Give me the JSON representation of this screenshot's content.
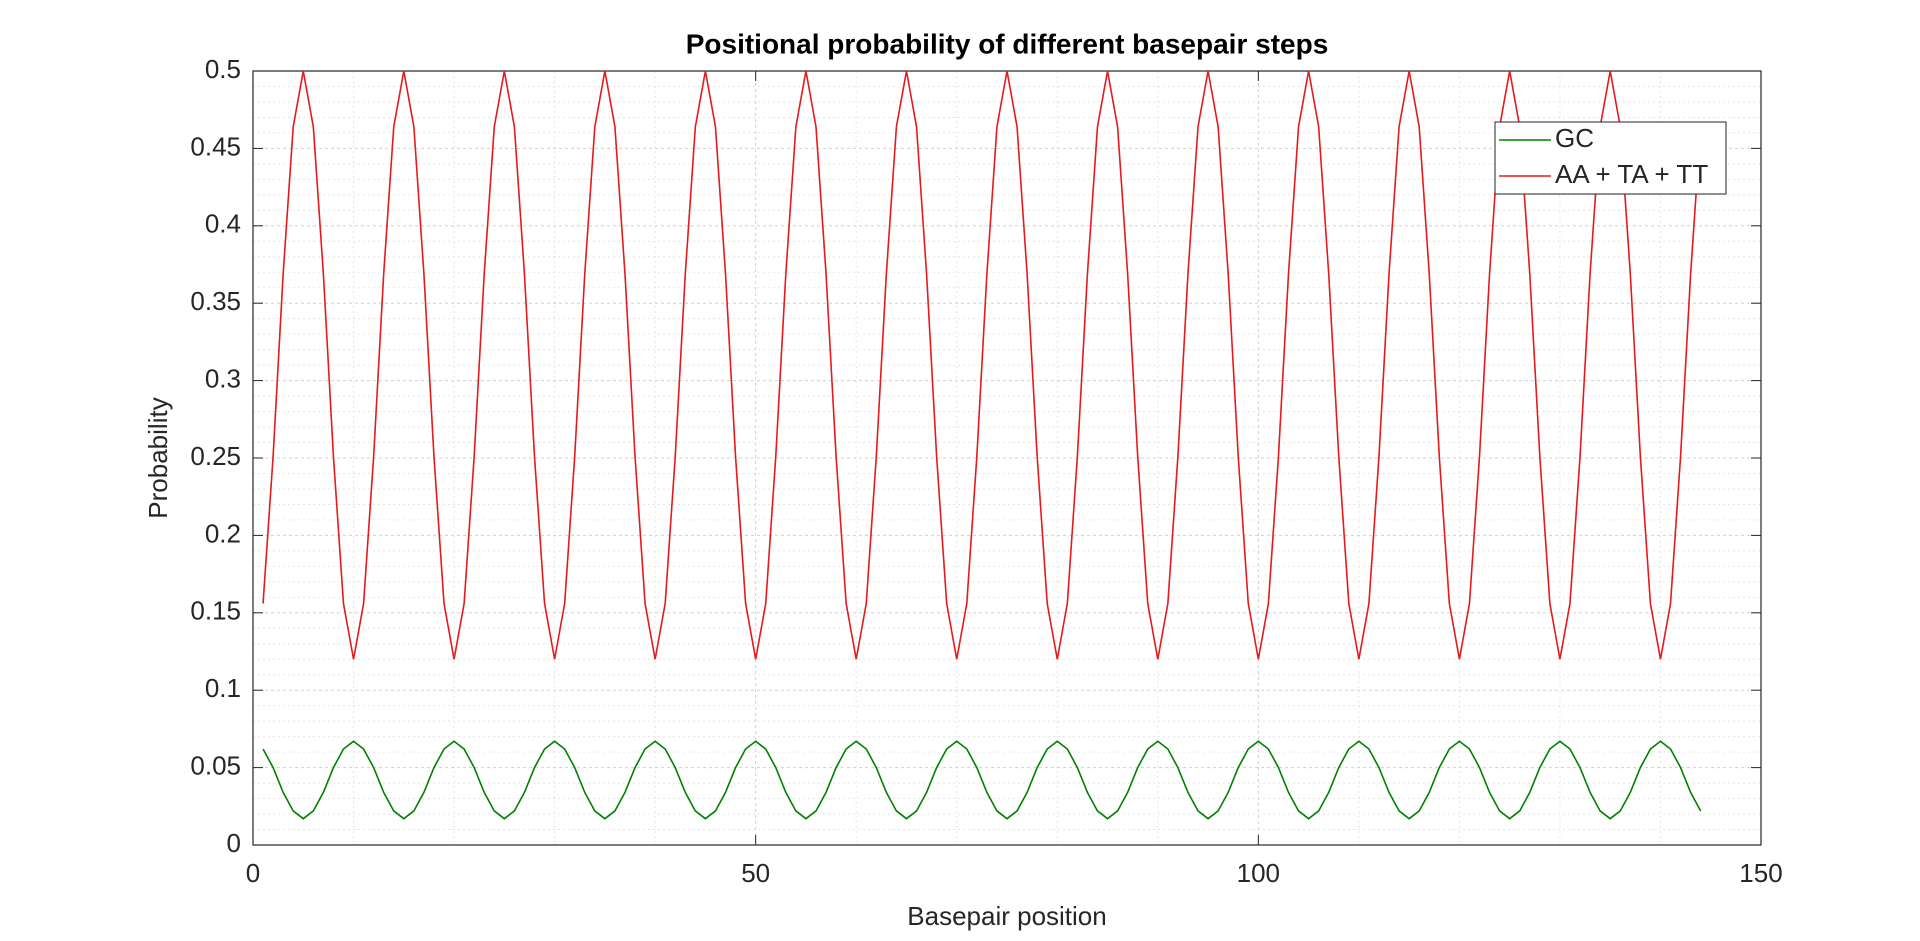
{
  "chart_data": {
    "type": "line",
    "title": "Positional probability of different basepair steps",
    "xlabel": "Basepair position",
    "ylabel": "Probability",
    "xlim": [
      0,
      150
    ],
    "xticks": [
      0,
      50,
      100,
      150
    ],
    "ylim": [
      0,
      0.5
    ],
    "yticks": [
      0,
      0.05,
      0.1,
      0.15,
      0.2,
      0.25,
      0.3,
      0.35,
      0.4,
      0.45,
      0.5
    ],
    "grid": true,
    "minor_grid": true,
    "legend": "northeast",
    "x": [
      1,
      2,
      3,
      4,
      5,
      6,
      7,
      8,
      9,
      10,
      11,
      12,
      13,
      14,
      15,
      16,
      17,
      18,
      19,
      20,
      21,
      22,
      23,
      24,
      25,
      26,
      27,
      28,
      29,
      30,
      31,
      32,
      33,
      34,
      35,
      36,
      37,
      38,
      39,
      40,
      41,
      42,
      43,
      44,
      45,
      46,
      47,
      48,
      49,
      50,
      51,
      52,
      53,
      54,
      55,
      56,
      57,
      58,
      59,
      60,
      61,
      62,
      63,
      64,
      65,
      66,
      67,
      68,
      69,
      70,
      71,
      72,
      73,
      74,
      75,
      76,
      77,
      78,
      79,
      80,
      81,
      82,
      83,
      84,
      85,
      86,
      87,
      88,
      89,
      90,
      91,
      92,
      93,
      94,
      95,
      96,
      97,
      98,
      99,
      100,
      101,
      102,
      103,
      104,
      105,
      106,
      107,
      108,
      109,
      110,
      111,
      112,
      113,
      114,
      115,
      116,
      117,
      118,
      119,
      120,
      121,
      122,
      123,
      124,
      125,
      126,
      127,
      128,
      129,
      130,
      131,
      132,
      133,
      134,
      135,
      136,
      137,
      138,
      139,
      140,
      141,
      142,
      143,
      144
    ],
    "series": [
      {
        "name": "GC",
        "color": "#008000",
        "values": [
          0.062,
          0.05,
          0.034,
          0.022,
          0.017,
          0.022,
          0.034,
          0.05,
          0.062,
          0.067,
          0.062,
          0.05,
          0.034,
          0.022,
          0.017,
          0.022,
          0.034,
          0.05,
          0.062,
          0.067,
          0.062,
          0.05,
          0.034,
          0.022,
          0.017,
          0.022,
          0.034,
          0.05,
          0.062,
          0.067,
          0.062,
          0.05,
          0.034,
          0.022,
          0.017,
          0.022,
          0.034,
          0.05,
          0.062,
          0.067,
          0.062,
          0.05,
          0.034,
          0.022,
          0.017,
          0.022,
          0.034,
          0.05,
          0.062,
          0.067,
          0.062,
          0.05,
          0.034,
          0.022,
          0.017,
          0.022,
          0.034,
          0.05,
          0.062,
          0.067,
          0.062,
          0.05,
          0.034,
          0.022,
          0.017,
          0.022,
          0.034,
          0.05,
          0.062,
          0.067,
          0.062,
          0.05,
          0.034,
          0.022,
          0.017,
          0.022,
          0.034,
          0.05,
          0.062,
          0.067,
          0.062,
          0.05,
          0.034,
          0.022,
          0.017,
          0.022,
          0.034,
          0.05,
          0.062,
          0.067,
          0.062,
          0.05,
          0.034,
          0.022,
          0.017,
          0.022,
          0.034,
          0.05,
          0.062,
          0.067,
          0.062,
          0.05,
          0.034,
          0.022,
          0.017,
          0.022,
          0.034,
          0.05,
          0.062,
          0.067,
          0.062,
          0.05,
          0.034,
          0.022,
          0.017,
          0.022,
          0.034,
          0.05,
          0.062,
          0.067,
          0.062,
          0.05,
          0.034,
          0.022,
          0.017,
          0.022,
          0.034,
          0.05,
          0.062,
          0.067,
          0.062,
          0.05,
          0.034,
          0.022,
          0.017,
          0.022,
          0.034,
          0.05,
          0.062,
          0.067,
          0.062,
          0.05,
          0.034,
          0.022
        ]
      },
      {
        "name": "AA + TA + TT",
        "color": "#e41a1c",
        "values": [
          0.156,
          0.251,
          0.369,
          0.464,
          0.5,
          0.464,
          0.369,
          0.251,
          0.156,
          0.12,
          0.156,
          0.251,
          0.369,
          0.464,
          0.5,
          0.464,
          0.369,
          0.251,
          0.156,
          0.12,
          0.156,
          0.251,
          0.369,
          0.464,
          0.5,
          0.464,
          0.369,
          0.251,
          0.156,
          0.12,
          0.156,
          0.251,
          0.369,
          0.464,
          0.5,
          0.464,
          0.369,
          0.251,
          0.156,
          0.12,
          0.156,
          0.251,
          0.369,
          0.464,
          0.5,
          0.464,
          0.369,
          0.251,
          0.156,
          0.12,
          0.156,
          0.251,
          0.369,
          0.464,
          0.5,
          0.464,
          0.369,
          0.251,
          0.156,
          0.12,
          0.156,
          0.251,
          0.369,
          0.464,
          0.5,
          0.464,
          0.369,
          0.251,
          0.156,
          0.12,
          0.156,
          0.251,
          0.369,
          0.464,
          0.5,
          0.464,
          0.369,
          0.251,
          0.156,
          0.12,
          0.156,
          0.251,
          0.369,
          0.464,
          0.5,
          0.464,
          0.369,
          0.251,
          0.156,
          0.12,
          0.156,
          0.251,
          0.369,
          0.464,
          0.5,
          0.464,
          0.369,
          0.251,
          0.156,
          0.12,
          0.156,
          0.251,
          0.369,
          0.464,
          0.5,
          0.464,
          0.369,
          0.251,
          0.156,
          0.12,
          0.156,
          0.251,
          0.369,
          0.464,
          0.5,
          0.464,
          0.369,
          0.251,
          0.156,
          0.12,
          0.156,
          0.251,
          0.369,
          0.464,
          0.5,
          0.464,
          0.369,
          0.251,
          0.156,
          0.12,
          0.156,
          0.251,
          0.369,
          0.464,
          0.5,
          0.464,
          0.369,
          0.251,
          0.156,
          0.12,
          0.156,
          0.251,
          0.369,
          0.464
        ]
      }
    ]
  }
}
